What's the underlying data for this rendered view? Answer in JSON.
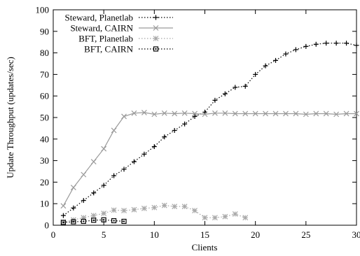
{
  "chart_data": {
    "type": "line",
    "title": "",
    "xlabel": "Clients",
    "ylabel": "Update Throughput (updates/sec)",
    "xlim": [
      0,
      30
    ],
    "ylim": [
      0,
      100
    ],
    "xticks": [
      0,
      5,
      10,
      15,
      20,
      25,
      30
    ],
    "yticks": [
      0,
      10,
      20,
      30,
      40,
      50,
      60,
      70,
      80,
      90,
      100
    ],
    "grid": false,
    "legend_position": "top-left",
    "series": [
      {
        "name": "Steward, Planetlab",
        "color": "#000000",
        "line": "dotted",
        "marker": "plus",
        "x": [
          1,
          2,
          3,
          4,
          5,
          6,
          7,
          8,
          9,
          10,
          11,
          12,
          13,
          14,
          15,
          16,
          17,
          18,
          19,
          20,
          21,
          22,
          23,
          24,
          25,
          26,
          27,
          28,
          29,
          30
        ],
        "y": [
          4.5,
          8,
          11.5,
          15,
          18.5,
          23,
          26,
          29.5,
          33,
          36.5,
          41,
          44,
          47,
          50.5,
          52.5,
          58,
          61,
          64,
          64.5,
          70,
          74,
          76.5,
          79.5,
          81.5,
          83,
          84,
          84.5,
          84.5,
          84.5,
          83.5
        ]
      },
      {
        "name": "Steward, CAIRN",
        "color": "#9a9a9a",
        "line": "solid",
        "marker": "cross",
        "x": [
          1,
          2,
          3,
          4,
          5,
          6,
          7,
          8,
          9,
          10,
          11,
          12,
          13,
          14,
          15,
          16,
          17,
          18,
          19,
          20,
          21,
          22,
          23,
          24,
          25,
          26,
          27,
          28,
          29,
          30
        ],
        "y": [
          9,
          17.5,
          23.5,
          29.5,
          35.5,
          44,
          50.5,
          52,
          52.3,
          51.5,
          52,
          51.8,
          52,
          51.8,
          51.5,
          52,
          52,
          51.8,
          51.8,
          51.8,
          51.8,
          51.8,
          51.8,
          51.8,
          51.5,
          51.8,
          51.8,
          51.5,
          51.8,
          51.8
        ]
      },
      {
        "name": "BFT, Planetlab",
        "color": "#a8a8a8",
        "line": "dotted",
        "marker": "asterisk",
        "x": [
          1,
          2,
          3,
          4,
          5,
          6,
          7,
          8,
          9,
          10,
          11,
          12,
          13,
          14,
          15,
          16,
          17,
          18,
          19
        ],
        "y": [
          1.5,
          2.5,
          3.5,
          4.5,
          5.5,
          7,
          6.8,
          7.2,
          7.8,
          8.2,
          9.2,
          8.7,
          8.7,
          6.8,
          3.5,
          3.5,
          4,
          5.2,
          3.5
        ]
      },
      {
        "name": "BFT, CAIRN",
        "color": "#000000",
        "line": "dotted",
        "marker": "square",
        "x": [
          1,
          2,
          3,
          4,
          5,
          6,
          7
        ],
        "y": [
          1.3,
          1.6,
          1.8,
          2.3,
          2.5,
          2.1,
          1.8
        ]
      }
    ]
  }
}
